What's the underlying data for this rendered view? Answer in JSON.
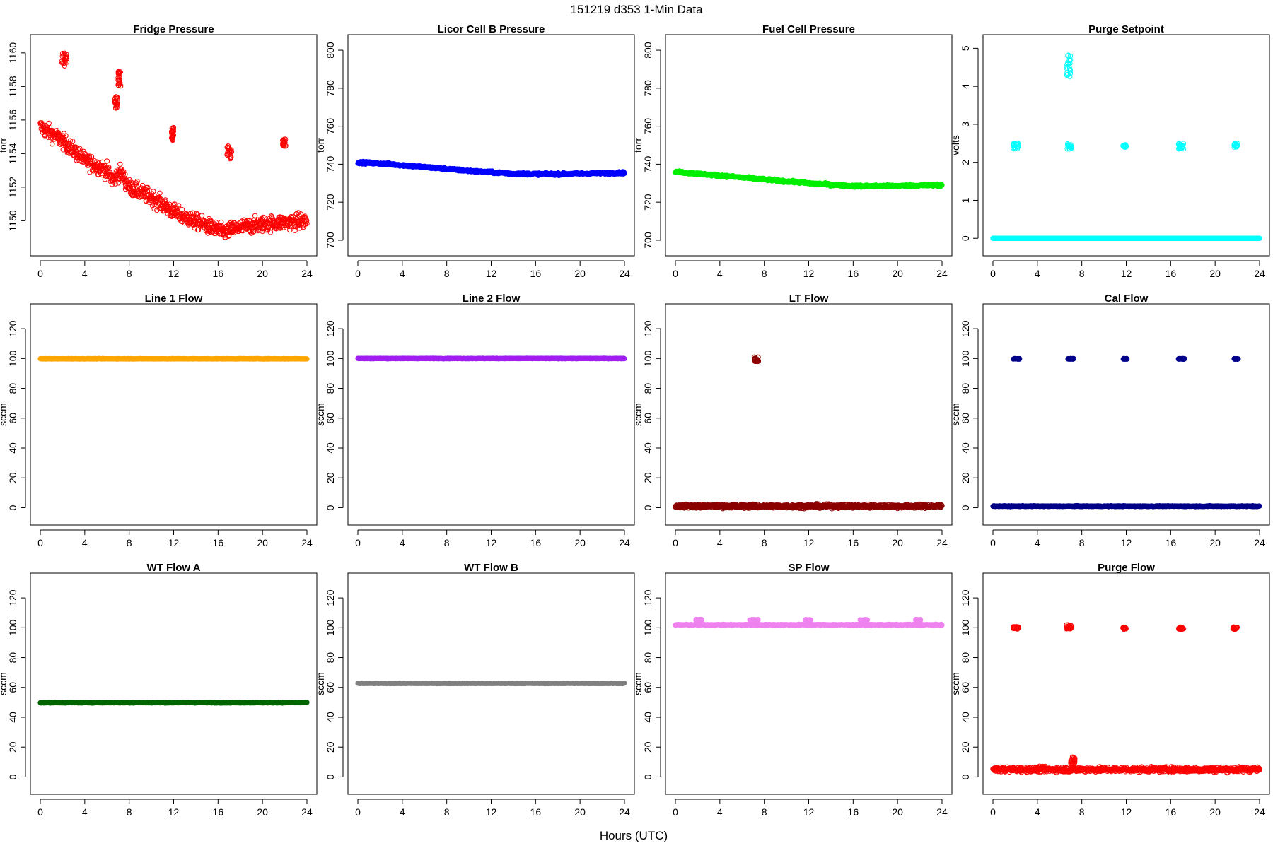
{
  "title": "151219   d353   1-Min Data",
  "xlabel": "Hours (UTC)",
  "chart_data": [
    {
      "type": "scatter",
      "title": "Fridge Pressure",
      "ylabel": "torr",
      "xlim": [
        0,
        24
      ],
      "ylim": [
        1148.5,
        1160.5
      ],
      "xticks": [
        0,
        4,
        8,
        12,
        16,
        20,
        24
      ],
      "yticks": [
        1150,
        1152,
        1154,
        1156,
        1158,
        1160
      ],
      "color": "#ff0000",
      "marker": "open-circle",
      "profile": [
        [
          0,
          1155.6
        ],
        [
          1.5,
          1155.0
        ],
        [
          2.3,
          1154.6
        ],
        [
          4,
          1153.6
        ],
        [
          6,
          1153.0
        ],
        [
          6.5,
          1152.4
        ],
        [
          7.2,
          1152.9
        ],
        [
          8,
          1152.0
        ],
        [
          10,
          1151.4
        ],
        [
          11.8,
          1150.6
        ],
        [
          13,
          1150.2
        ],
        [
          15,
          1149.7
        ],
        [
          16.5,
          1149.3
        ],
        [
          17.3,
          1149.5
        ],
        [
          18,
          1149.6
        ],
        [
          20,
          1149.8
        ],
        [
          22,
          1149.9
        ],
        [
          24,
          1150.0
        ]
      ],
      "spread": 0.45,
      "clusters": [
        {
          "x": [
            1.9,
            2.4
          ],
          "y": [
            1159.2,
            1160.1
          ]
        },
        {
          "x": [
            6.7,
            6.95
          ],
          "y": [
            1156.6,
            1157.4
          ]
        },
        {
          "x": [
            7.0,
            7.25
          ],
          "y": [
            1158.0,
            1158.9
          ]
        },
        {
          "x": [
            11.8,
            12.0
          ],
          "y": [
            1154.8,
            1155.6
          ]
        },
        {
          "x": [
            16.8,
            17.3
          ],
          "y": [
            1153.6,
            1154.5
          ]
        },
        {
          "x": [
            21.8,
            22.1
          ],
          "y": [
            1154.4,
            1154.9
          ]
        }
      ]
    },
    {
      "type": "scatter",
      "title": "Licor Cell B Pressure",
      "ylabel": "torr",
      "xlim": [
        0,
        24
      ],
      "ylim": [
        697,
        803
      ],
      "xticks": [
        0,
        4,
        8,
        12,
        16,
        20,
        24
      ],
      "yticks": [
        700,
        720,
        740,
        760,
        780,
        800
      ],
      "color": "#0000ff",
      "marker": "filled",
      "profile": [
        [
          0,
          741
        ],
        [
          3,
          740
        ],
        [
          6,
          738.5
        ],
        [
          10,
          736.5
        ],
        [
          14,
          735
        ],
        [
          18,
          734.8
        ],
        [
          24,
          735.5
        ]
      ],
      "spread": 0.6,
      "clusters": []
    },
    {
      "type": "scatter",
      "title": "Fuel Cell Pressure",
      "ylabel": "torr",
      "xlim": [
        0,
        24
      ],
      "ylim": [
        697,
        803
      ],
      "xticks": [
        0,
        4,
        8,
        12,
        16,
        20,
        24
      ],
      "yticks": [
        700,
        720,
        740,
        760,
        780,
        800
      ],
      "color": "#00ee00",
      "marker": "filled",
      "profile": [
        [
          0,
          736
        ],
        [
          3,
          734.5
        ],
        [
          7,
          732.5
        ],
        [
          12,
          730
        ],
        [
          16,
          728.5
        ],
        [
          20,
          728.6
        ],
        [
          24,
          729
        ]
      ],
      "spread": 0.6,
      "clusters": []
    },
    {
      "type": "scatter",
      "title": "Purge Setpoint",
      "ylabel": "volts",
      "xlim": [
        0,
        24
      ],
      "ylim": [
        -0.2,
        5.1
      ],
      "xticks": [
        0,
        4,
        8,
        12,
        16,
        20,
        24
      ],
      "yticks": [
        0,
        1,
        2,
        3,
        4,
        5
      ],
      "color": "#00ffff",
      "marker": "open-circle",
      "profile": [
        [
          0,
          0
        ],
        [
          24,
          0
        ]
      ],
      "spread": 0.0,
      "clusters": [
        {
          "x": [
            1.8,
            2.3
          ],
          "y": [
            2.35,
            2.5
          ]
        },
        {
          "x": [
            6.6,
            7.0
          ],
          "y": [
            4.25,
            4.85
          ]
        },
        {
          "x": [
            6.7,
            7.1
          ],
          "y": [
            2.35,
            2.5
          ]
        },
        {
          "x": [
            11.7,
            12.0
          ],
          "y": [
            2.4,
            2.47
          ]
        },
        {
          "x": [
            16.7,
            17.2
          ],
          "y": [
            2.35,
            2.5
          ]
        },
        {
          "x": [
            21.7,
            22.0
          ],
          "y": [
            2.4,
            2.5
          ]
        }
      ]
    },
    {
      "type": "scatter",
      "title": "Line 1 Flow",
      "ylabel": "sccm",
      "xlim": [
        0,
        24
      ],
      "ylim": [
        -5,
        130
      ],
      "xticks": [
        0,
        4,
        8,
        12,
        16,
        20,
        24
      ],
      "yticks": [
        0,
        20,
        40,
        60,
        80,
        100,
        120
      ],
      "color": "#ffa500",
      "marker": "filled",
      "profile": [
        [
          0,
          99.8
        ],
        [
          24,
          99.8
        ]
      ],
      "spread": 0.2,
      "clusters": []
    },
    {
      "type": "scatter",
      "title": "Line 2 Flow",
      "ylabel": "sccm",
      "xlim": [
        0,
        24
      ],
      "ylim": [
        -5,
        130
      ],
      "xticks": [
        0,
        4,
        8,
        12,
        16,
        20,
        24
      ],
      "yticks": [
        0,
        20,
        40,
        60,
        80,
        100,
        120
      ],
      "color": "#a020f0",
      "marker": "filled",
      "profile": [
        [
          0,
          100
        ],
        [
          24,
          100
        ]
      ],
      "spread": 0.2,
      "clusters": []
    },
    {
      "type": "scatter",
      "title": "LT Flow",
      "ylabel": "sccm",
      "xlim": [
        0,
        24
      ],
      "ylim": [
        -5,
        130
      ],
      "xticks": [
        0,
        4,
        8,
        12,
        16,
        20,
        24
      ],
      "yticks": [
        0,
        20,
        40,
        60,
        80,
        100,
        120
      ],
      "color": "#8b0000",
      "marker": "open-circle",
      "profile": [
        [
          0,
          1
        ],
        [
          24,
          1
        ]
      ],
      "spread": 1.2,
      "clusters": [
        {
          "x": [
            7.1,
            7.5
          ],
          "y": [
            98,
            101
          ]
        }
      ]
    },
    {
      "type": "scatter",
      "title": "Cal Flow",
      "ylabel": "sccm",
      "xlim": [
        0,
        24
      ],
      "ylim": [
        -5,
        130
      ],
      "xticks": [
        0,
        4,
        8,
        12,
        16,
        20,
        24
      ],
      "yticks": [
        0,
        20,
        40,
        60,
        80,
        100,
        120
      ],
      "color": "#00008b",
      "marker": "filled",
      "profile": [
        [
          0,
          1
        ],
        [
          24,
          1
        ]
      ],
      "spread": 0.3,
      "clusters": [
        {
          "x": [
            1.8,
            2.4
          ],
          "y": [
            99.5,
            100
          ]
        },
        {
          "x": [
            6.7,
            7.3
          ],
          "y": [
            99.5,
            100
          ]
        },
        {
          "x": [
            11.7,
            12.1
          ],
          "y": [
            99.5,
            100
          ]
        },
        {
          "x": [
            16.7,
            17.3
          ],
          "y": [
            99.5,
            100
          ]
        },
        {
          "x": [
            21.7,
            22.1
          ],
          "y": [
            99.5,
            100
          ]
        }
      ]
    },
    {
      "type": "scatter",
      "title": "WT Flow A",
      "ylabel": "sccm",
      "xlim": [
        0,
        24
      ],
      "ylim": [
        -5,
        130
      ],
      "xticks": [
        0,
        4,
        8,
        12,
        16,
        20,
        24
      ],
      "yticks": [
        0,
        20,
        40,
        60,
        80,
        100,
        120
      ],
      "color": "#006400",
      "marker": "filled",
      "profile": [
        [
          0,
          49.8
        ],
        [
          24,
          49.8
        ]
      ],
      "spread": 0.25,
      "clusters": []
    },
    {
      "type": "scatter",
      "title": "WT Flow B",
      "ylabel": "sccm",
      "xlim": [
        0,
        24
      ],
      "ylim": [
        -5,
        130
      ],
      "xticks": [
        0,
        4,
        8,
        12,
        16,
        20,
        24
      ],
      "yticks": [
        0,
        20,
        40,
        60,
        80,
        100,
        120
      ],
      "color": "#808080",
      "marker": "filled",
      "profile": [
        [
          0,
          62.7
        ],
        [
          24,
          62.7
        ]
      ],
      "spread": 0.2,
      "clusters": []
    },
    {
      "type": "scatter",
      "title": "SP Flow",
      "ylabel": "sccm",
      "xlim": [
        0,
        24
      ],
      "ylim": [
        -5,
        130
      ],
      "xticks": [
        0,
        4,
        8,
        12,
        16,
        20,
        24
      ],
      "yticks": [
        0,
        20,
        40,
        60,
        80,
        100,
        120
      ],
      "color": "#ee82ee",
      "marker": "filled",
      "profile": [
        [
          0,
          102
        ],
        [
          24,
          102
        ]
      ],
      "spread": 0.3,
      "clusters": [
        {
          "x": [
            1.8,
            2.4
          ],
          "y": [
            105,
            105.6
          ]
        },
        {
          "x": [
            6.6,
            7.5
          ],
          "y": [
            105,
            105.6
          ]
        },
        {
          "x": [
            11.7,
            12.2
          ],
          "y": [
            105,
            105.6
          ]
        },
        {
          "x": [
            16.6,
            17.3
          ],
          "y": [
            105,
            105.6
          ]
        },
        {
          "x": [
            21.6,
            22.1
          ],
          "y": [
            105,
            105.6
          ]
        }
      ]
    },
    {
      "type": "scatter",
      "title": "Purge Flow",
      "ylabel": "sccm",
      "xlim": [
        0,
        24
      ],
      "ylim": [
        -5,
        130
      ],
      "xticks": [
        0,
        4,
        8,
        12,
        16,
        20,
        24
      ],
      "yticks": [
        0,
        20,
        40,
        60,
        80,
        100,
        120
      ],
      "color": "#ff0000",
      "marker": "open-circle",
      "profile": [
        [
          0,
          5
        ],
        [
          24,
          5
        ]
      ],
      "spread": 1.6,
      "clusters": [
        {
          "x": [
            1.8,
            2.3
          ],
          "y": [
            99,
            101
          ]
        },
        {
          "x": [
            6.6,
            7.1
          ],
          "y": [
            99,
            102
          ]
        },
        {
          "x": [
            11.7,
            12.0
          ],
          "y": [
            99,
            100.5
          ]
        },
        {
          "x": [
            16.7,
            17.2
          ],
          "y": [
            99,
            100.5
          ]
        },
        {
          "x": [
            21.6,
            22.0
          ],
          "y": [
            99,
            100.5
          ]
        },
        {
          "x": [
            7.0,
            7.4
          ],
          "y": [
            8,
            14
          ]
        }
      ]
    }
  ]
}
